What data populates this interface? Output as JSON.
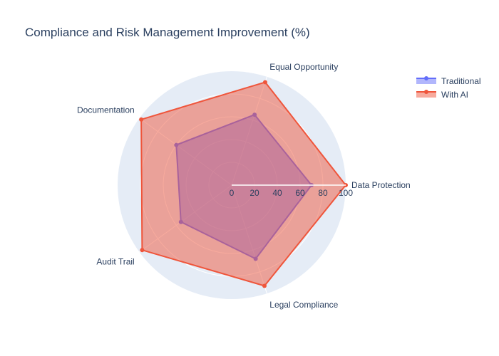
{
  "chart_data": {
    "type": "radar",
    "title": "Compliance and Risk Management Improvement (%)",
    "categories": [
      "Data Protection",
      "Equal Opportunity",
      "Documentation",
      "Audit Trail",
      "Legal Compliance"
    ],
    "series": [
      {
        "name": "Traditional",
        "values": [
          70,
          65,
          60,
          55,
          68
        ],
        "color": "#636efa"
      },
      {
        "name": "With AI",
        "values": [
          100,
          95,
          98,
          97,
          93
        ],
        "color": "#ef553b"
      }
    ],
    "radial_ticks": [
      0,
      20,
      40,
      60,
      80,
      100
    ],
    "radial_range": [
      0,
      100
    ],
    "polar_background": "#e5ecf6",
    "grid": true,
    "legend_position": "top-right"
  }
}
